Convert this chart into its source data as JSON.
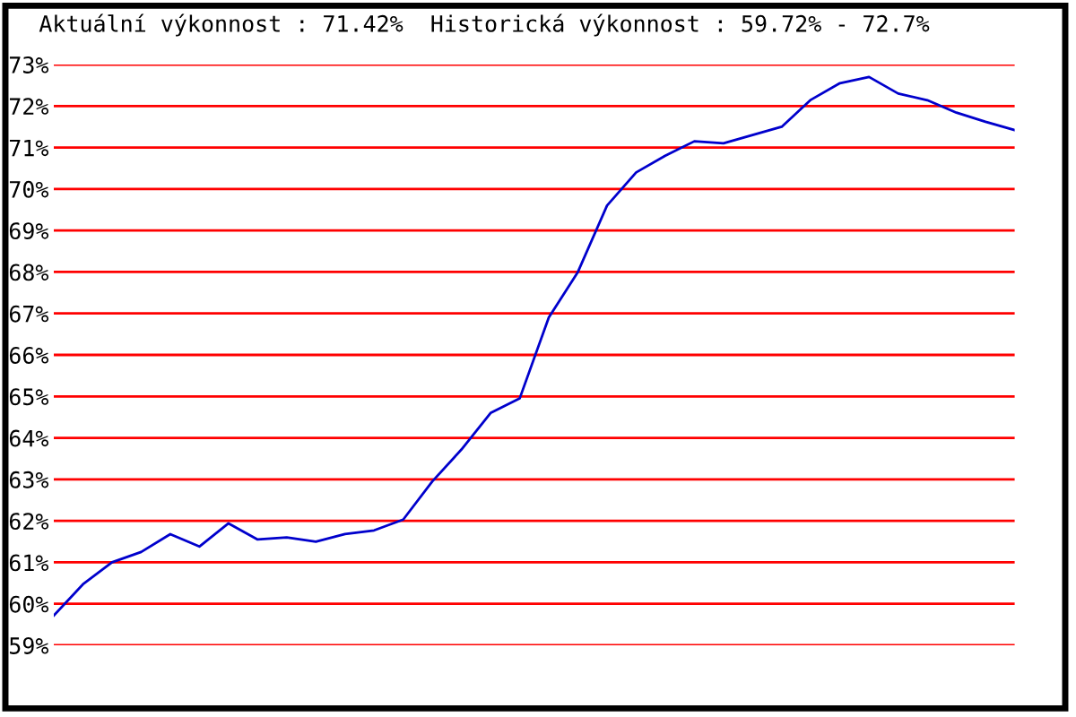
{
  "chart_data": {
    "type": "line",
    "title": "Aktuální výkonnost : 71.42%  Historická výkonnost : 59.72% - 72.7%",
    "categories": [
      null,
      null,
      null,
      null,
      null,
      null,
      null,
      null,
      null,
      null,
      null,
      null,
      null,
      null,
      null,
      null,
      null,
      null,
      null,
      null,
      null,
      null,
      null,
      null,
      null,
      null,
      null,
      null,
      null,
      null,
      null,
      null,
      null,
      null
    ],
    "series": [
      {
        "color": "#0000cc",
        "values": [
          59.72,
          60.47,
          61.0,
          61.25,
          61.68,
          61.38,
          61.94,
          61.55,
          61.6,
          61.5,
          61.68,
          61.77,
          62.03,
          62.95,
          63.72,
          64.6,
          64.95,
          66.9,
          68.0,
          69.6,
          70.4,
          70.8,
          71.15,
          71.1,
          71.3,
          71.5,
          72.15,
          72.55,
          72.7,
          72.3,
          72.14,
          71.84,
          71.62,
          71.42
        ]
      }
    ],
    "ylim": [
      59,
      73
    ],
    "yticks": [
      {
        "value": 59,
        "label": "59%"
      },
      {
        "value": 60,
        "label": "60%"
      },
      {
        "value": 61,
        "label": "61%"
      },
      {
        "value": 62,
        "label": "62%"
      },
      {
        "value": 63,
        "label": "63%"
      },
      {
        "value": 64,
        "label": "64%"
      },
      {
        "value": 65,
        "label": "65%"
      },
      {
        "value": 66,
        "label": "66%"
      },
      {
        "value": 67,
        "label": "67%"
      },
      {
        "value": 68,
        "label": "68%"
      },
      {
        "value": 69,
        "label": "69%"
      },
      {
        "value": 70,
        "label": "70%"
      },
      {
        "value": 71,
        "label": "71%"
      },
      {
        "value": 72,
        "label": "72%"
      },
      {
        "value": 73,
        "label": "73%"
      }
    ],
    "grid": "y",
    "tick_labels": "y",
    "marker": "none",
    "line_style": "solid"
  }
}
